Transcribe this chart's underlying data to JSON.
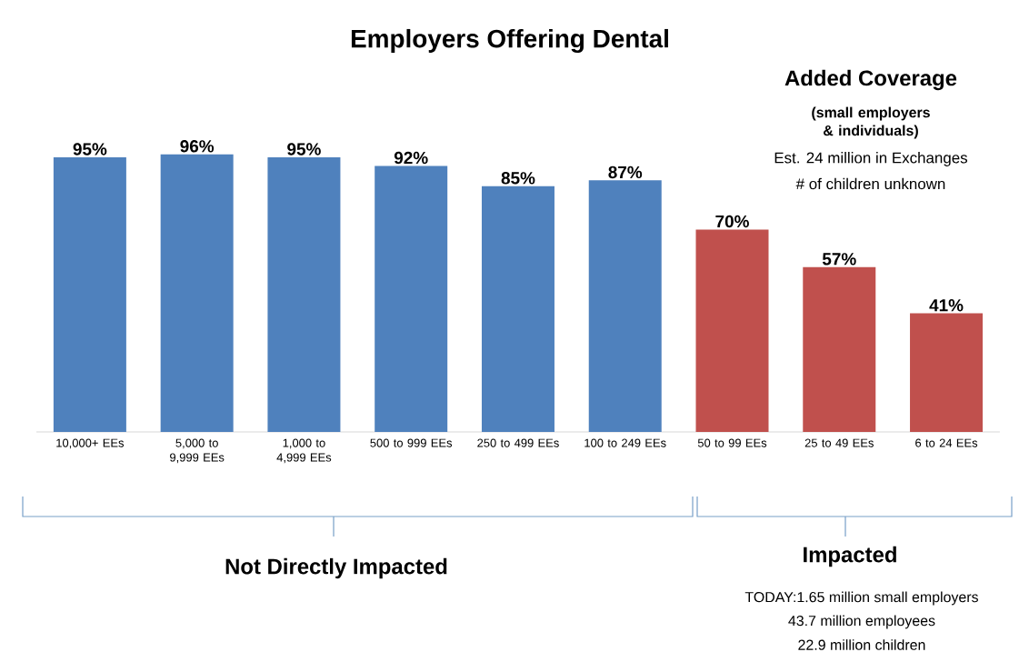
{
  "chart_data": {
    "type": "bar",
    "title": "Employers Offering Dental",
    "categories": [
      "10,000+ EEs",
      "5,000 to 9,999 EEs",
      "1,000 to 4,999 EEs",
      "500 to 999 EEs",
      "250 to 499 EEs",
      "100 to 249 EEs",
      "50 to 99 EEs",
      "25 to 49 EEs",
      "6 to 24 EEs"
    ],
    "values": [
      95,
      96,
      95,
      92,
      85,
      87,
      70,
      57,
      41
    ],
    "value_labels": [
      "95%",
      "96%",
      "95%",
      "92%",
      "85%",
      "87%",
      "70%",
      "57%",
      "41%"
    ],
    "colors": [
      "#4f81bd",
      "#4f81bd",
      "#4f81bd",
      "#4f81bd",
      "#4f81bd",
      "#4f81bd",
      "#c0504d",
      "#c0504d",
      "#c0504d"
    ],
    "annotations": [
      "Added Coverage",
      "(small employers & individuals)",
      "Est. 24 million in Exchanges",
      "# of children unknown",
      "Not Directly Impacted",
      "Impacted",
      "TODAY:1.65 million small employers",
      "43.7 million employees",
      "22.9 million children"
    ]
  }
}
